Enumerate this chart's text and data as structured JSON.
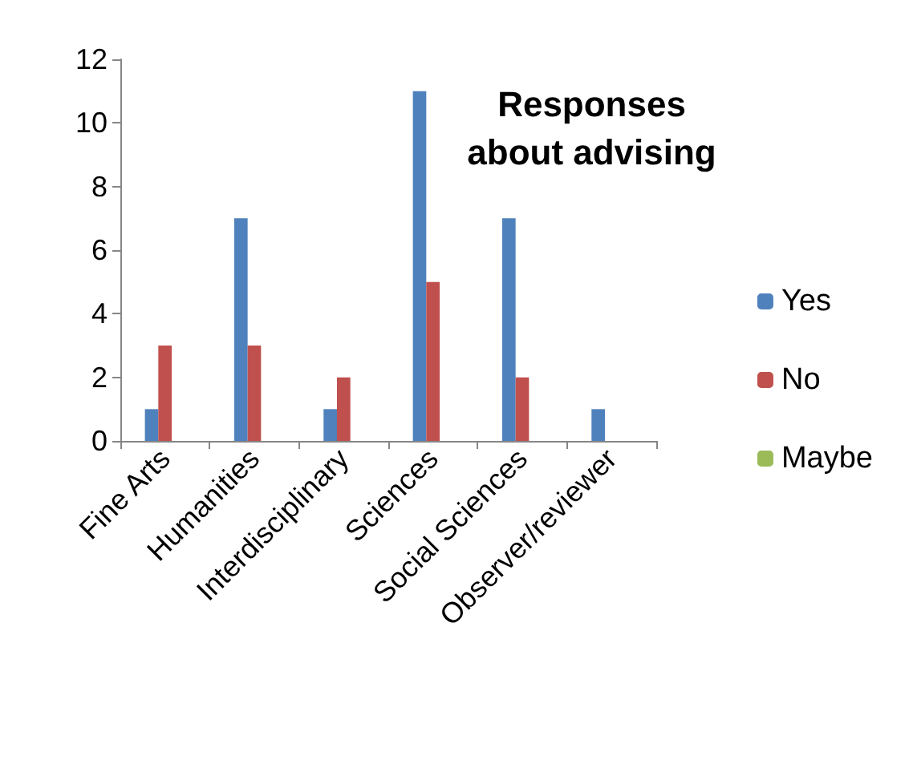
{
  "chart_data": {
    "type": "bar",
    "title": "Responses\nabout advising",
    "categories": [
      "Fine Arts",
      "Humanities",
      "Interdisciplinary",
      "Sciences",
      "Social Sciences",
      "Observer/reviewer"
    ],
    "series": [
      {
        "name": "Yes",
        "color": "#4f81bd",
        "values": [
          1,
          7,
          1,
          11,
          7,
          1
        ]
      },
      {
        "name": "No",
        "color": "#c0504d",
        "values": [
          3,
          3,
          2,
          5,
          2,
          0
        ]
      },
      {
        "name": "Maybe",
        "color": "#9bbb59",
        "values": [
          0,
          0,
          0,
          0,
          0,
          0
        ]
      }
    ],
    "ylim": [
      0,
      12
    ],
    "yticks": [
      0,
      2,
      4,
      6,
      8,
      10,
      12
    ],
    "grid": false,
    "legend": "right"
  }
}
